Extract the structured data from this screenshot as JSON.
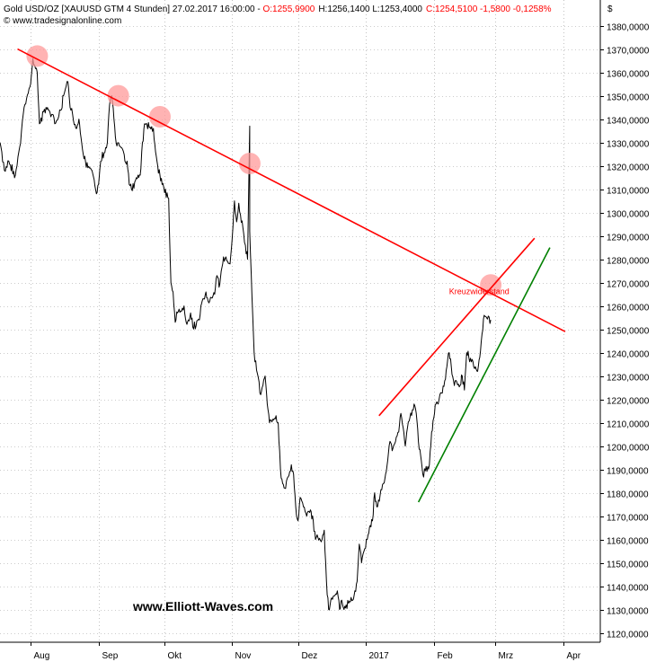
{
  "header": {
    "instrument": "Gold USD/OZ [XAUUSD GTM  4 Stunden] 27.02.2017 16:00:00 - ",
    "open": "O:1255,9900",
    "high_low": "H:1256,1400 L:1253,4000",
    "change": "C:1254,5100 -1,5800 -0,1258%",
    "source": "© www.tradesignalonline.com"
  },
  "watermark": "www.Elliott-Waves.com",
  "annotation": "Kreuzwiderstand",
  "colors": {
    "price": "#000000",
    "resistance": "#ff0000",
    "support": "#008000",
    "touch_marker": "#ff9a9a",
    "axis": "#000000",
    "grid": "#999999"
  },
  "chart_data": {
    "type": "line",
    "title": "Gold USD/OZ [XAUUSD GTM 4 Stunden]",
    "currency_symbol": "$",
    "x_tick_labels": [
      "Aug",
      "Sep",
      "Okt",
      "Nov",
      "Dez",
      "2017",
      "Feb",
      "Mrz",
      "Apr"
    ],
    "x_tick_dates": [
      "2016-08-01",
      "2016-09-01",
      "2016-10-01",
      "2016-11-01",
      "2016-12-01",
      "2017-01-01",
      "2017-02-01",
      "2017-03-01",
      "2017-04-01"
    ],
    "y_tick_labels": [
      "1380,0000",
      "1370,0000",
      "1360,0000",
      "1350,0000",
      "1340,0000",
      "1330,0000",
      "1320,0000",
      "1310,0000",
      "1300,0000",
      "1290,0000",
      "1280,0000",
      "1270,0000",
      "1260,0000",
      "1250,0000",
      "1240,0000",
      "1230,0000",
      "1220,0000",
      "1210,0000",
      "1200,0000",
      "1190,0000",
      "1180,0000",
      "1170,0000",
      "1160,0000",
      "1150,0000",
      "1140,0000",
      "1130,0000",
      "1120,0000"
    ],
    "ylim": [
      1116,
      1391
    ],
    "xlim": [
      "2016-07-18",
      "2017-04-18"
    ],
    "grid": true,
    "grid_style": "dotted",
    "y_axis_position": "right",
    "series": [
      {
        "type": "line",
        "points": [
          [
            "2016-07-18",
            1330
          ],
          [
            "2016-07-20",
            1318
          ],
          [
            "2016-07-22",
            1322
          ],
          [
            "2016-07-25",
            1316
          ],
          [
            "2016-07-27",
            1328
          ],
          [
            "2016-07-29",
            1345
          ],
          [
            "2016-08-01",
            1355
          ],
          [
            "2016-08-02",
            1366
          ],
          [
            "2016-08-04",
            1360
          ],
          [
            "2016-08-05",
            1338
          ],
          [
            "2016-08-08",
            1345
          ],
          [
            "2016-08-09",
            1344
          ],
          [
            "2016-08-11",
            1342
          ],
          [
            "2016-08-12",
            1338
          ],
          [
            "2016-08-15",
            1344
          ],
          [
            "2016-08-16",
            1350
          ],
          [
            "2016-08-18",
            1356
          ],
          [
            "2016-08-19",
            1345
          ],
          [
            "2016-08-22",
            1336
          ],
          [
            "2016-08-23",
            1340
          ],
          [
            "2016-08-24",
            1332
          ],
          [
            "2016-08-25",
            1325
          ],
          [
            "2016-08-26",
            1322
          ],
          [
            "2016-08-29",
            1318
          ],
          [
            "2016-08-30",
            1314
          ],
          [
            "2016-08-31",
            1308
          ],
          [
            "2016-09-01",
            1312
          ],
          [
            "2016-09-02",
            1322
          ],
          [
            "2016-09-05",
            1330
          ],
          [
            "2016-09-06",
            1346
          ],
          [
            "2016-09-07",
            1350
          ],
          [
            "2016-09-08",
            1340
          ],
          [
            "2016-09-09",
            1330
          ],
          [
            "2016-09-12",
            1327
          ],
          [
            "2016-09-13",
            1322
          ],
          [
            "2016-09-14",
            1322
          ],
          [
            "2016-09-15",
            1312
          ],
          [
            "2016-09-16",
            1310
          ],
          [
            "2016-09-19",
            1316
          ],
          [
            "2016-09-20",
            1316
          ],
          [
            "2016-09-21",
            1330
          ],
          [
            "2016-09-22",
            1338
          ],
          [
            "2016-09-23",
            1338
          ],
          [
            "2016-09-26",
            1336
          ],
          [
            "2016-09-27",
            1326
          ],
          [
            "2016-09-28",
            1320
          ],
          [
            "2016-09-29",
            1316
          ],
          [
            "2016-09-30",
            1312
          ],
          [
            "2016-10-03",
            1306
          ],
          [
            "2016-10-04",
            1270
          ],
          [
            "2016-10-05",
            1266
          ],
          [
            "2016-10-06",
            1253
          ],
          [
            "2016-10-07",
            1257
          ],
          [
            "2016-10-10",
            1260
          ],
          [
            "2016-10-11",
            1253
          ],
          [
            "2016-10-12",
            1254
          ],
          [
            "2016-10-13",
            1257
          ],
          [
            "2016-10-14",
            1251
          ],
          [
            "2016-10-17",
            1254
          ],
          [
            "2016-10-18",
            1261
          ],
          [
            "2016-10-19",
            1263
          ],
          [
            "2016-10-20",
            1266
          ],
          [
            "2016-10-21",
            1262
          ],
          [
            "2016-10-24",
            1265
          ],
          [
            "2016-10-25",
            1273
          ],
          [
            "2016-10-26",
            1268
          ],
          [
            "2016-10-27",
            1275
          ],
          [
            "2016-10-28",
            1281
          ],
          [
            "2016-10-31",
            1278
          ],
          [
            "2016-11-01",
            1289
          ],
          [
            "2016-11-02",
            1305
          ],
          [
            "2016-11-03",
            1296
          ],
          [
            "2016-11-04",
            1304
          ],
          [
            "2016-11-07",
            1286
          ],
          [
            "2016-11-08",
            1280
          ],
          [
            "2016-11-09",
            1337
          ],
          [
            "2016-11-09",
            1292
          ],
          [
            "2016-11-10",
            1264
          ],
          [
            "2016-11-11",
            1240
          ],
          [
            "2016-11-14",
            1222
          ],
          [
            "2016-11-15",
            1226
          ],
          [
            "2016-11-16",
            1230
          ],
          [
            "2016-11-17",
            1218
          ],
          [
            "2016-11-18",
            1210
          ],
          [
            "2016-11-21",
            1213
          ],
          [
            "2016-11-22",
            1210
          ],
          [
            "2016-11-23",
            1190
          ],
          [
            "2016-11-24",
            1184
          ],
          [
            "2016-11-25",
            1182
          ],
          [
            "2016-11-28",
            1192
          ],
          [
            "2016-11-29",
            1188
          ],
          [
            "2016-11-30",
            1174
          ],
          [
            "2016-12-01",
            1168
          ],
          [
            "2016-12-02",
            1178
          ],
          [
            "2016-12-05",
            1170
          ],
          [
            "2016-12-06",
            1172
          ],
          [
            "2016-12-07",
            1172
          ],
          [
            "2016-12-08",
            1168
          ],
          [
            "2016-12-09",
            1160
          ],
          [
            "2016-12-12",
            1160
          ],
          [
            "2016-12-13",
            1164
          ],
          [
            "2016-12-14",
            1142
          ],
          [
            "2016-12-15",
            1130
          ],
          [
            "2016-12-16",
            1134
          ],
          [
            "2016-12-19",
            1138
          ],
          [
            "2016-12-20",
            1130
          ],
          [
            "2016-12-21",
            1134
          ],
          [
            "2016-12-22",
            1130
          ],
          [
            "2016-12-23",
            1132
          ],
          [
            "2016-12-26",
            1134
          ],
          [
            "2016-12-27",
            1138
          ],
          [
            "2016-12-28",
            1142
          ],
          [
            "2016-12-29",
            1158
          ],
          [
            "2016-12-30",
            1150
          ],
          [
            "2017-01-02",
            1162
          ],
          [
            "2017-01-03",
            1166
          ],
          [
            "2017-01-04",
            1168
          ],
          [
            "2017-01-05",
            1180
          ],
          [
            "2017-01-06",
            1174
          ],
          [
            "2017-01-09",
            1184
          ],
          [
            "2017-01-10",
            1188
          ],
          [
            "2017-01-11",
            1194
          ],
          [
            "2017-01-12",
            1202
          ],
          [
            "2017-01-13",
            1198
          ],
          [
            "2017-01-16",
            1206
          ],
          [
            "2017-01-17",
            1214
          ],
          [
            "2017-01-18",
            1208
          ],
          [
            "2017-01-19",
            1200
          ],
          [
            "2017-01-20",
            1208
          ],
          [
            "2017-01-23",
            1218
          ],
          [
            "2017-01-24",
            1214
          ],
          [
            "2017-01-25",
            1202
          ],
          [
            "2017-01-26",
            1196
          ],
          [
            "2017-01-27",
            1188
          ],
          [
            "2017-01-30",
            1192
          ],
          [
            "2017-01-31",
            1206
          ],
          [
            "2017-02-01",
            1212
          ],
          [
            "2017-02-02",
            1218
          ],
          [
            "2017-02-03",
            1218
          ],
          [
            "2017-02-06",
            1228
          ],
          [
            "2017-02-07",
            1234
          ],
          [
            "2017-02-08",
            1240
          ],
          [
            "2017-02-09",
            1234
          ],
          [
            "2017-02-10",
            1228
          ],
          [
            "2017-02-13",
            1226
          ],
          [
            "2017-02-14",
            1230
          ],
          [
            "2017-02-15",
            1224
          ],
          [
            "2017-02-16",
            1240
          ],
          [
            "2017-02-17",
            1238
          ],
          [
            "2017-02-20",
            1234
          ],
          [
            "2017-02-21",
            1232
          ],
          [
            "2017-02-22",
            1238
          ],
          [
            "2017-02-23",
            1248
          ],
          [
            "2017-02-24",
            1256
          ],
          [
            "2017-02-27",
            1254
          ]
        ]
      }
    ],
    "trendlines": [
      {
        "name": "",
        "color": "#ff0000",
        "from": [
          "2016-07-26",
          1370
        ],
        "to": [
          "2017-04-02",
          1249
        ]
      },
      {
        "name": "",
        "color": "#ff0000",
        "from": [
          "2017-01-07",
          1213
        ],
        "to": [
          "2017-03-19",
          1289
        ]
      },
      {
        "name": "",
        "color": "#008000",
        "from": [
          "2017-01-25",
          1176
        ],
        "to": [
          "2017-03-26",
          1285
        ]
      }
    ],
    "touch_markers": [
      [
        "2016-08-04",
        1367
      ],
      [
        "2016-09-10",
        1350
      ],
      [
        "2016-09-29",
        1341
      ],
      [
        "2016-11-09",
        1321
      ],
      [
        "2017-02-27",
        1269
      ]
    ],
    "annotations": [
      {
        "text": "Kreuzwiderstand",
        "at": [
          "2017-02-08",
          1265
        ]
      }
    ]
  }
}
